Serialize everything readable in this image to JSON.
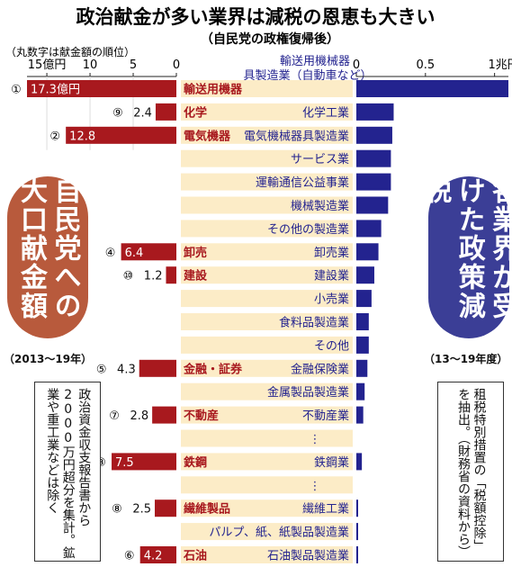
{
  "chart_data": {
    "type": "bar",
    "title": "政治献金が多い業界は減税の恩恵も大きい",
    "subtitle": "（自民党の政権復帰後）",
    "left_caption": "（丸数字は献金額の順位）",
    "left_axis": {
      "ticks": [
        "15億円",
        "10",
        "5",
        "0"
      ],
      "tick_values": [
        15,
        10,
        5,
        0
      ],
      "xlim": [
        0,
        17.3
      ]
    },
    "right_axis": {
      "ticks": [
        "0",
        "0.5",
        "1兆円"
      ],
      "tick_values": [
        0,
        0.5,
        1
      ],
      "xlim": [
        0,
        1.1
      ]
    },
    "right_header": "輸送用機械器具製造業（自動車など）",
    "colors": {
      "donation": "#a8191e",
      "tax": "#23238f",
      "band": "#fcecc7",
      "donation_label": "#a8191e",
      "tax_label": "#23238f"
    },
    "rows": [
      {
        "tax_label": "",
        "tax": 1.1,
        "donation_rank": "①",
        "donation": 17.3,
        "donation_text": "17.3億円",
        "donation_label_inside": true,
        "donation_industry": "輸送用機器"
      },
      {
        "tax_label": "化学工業",
        "tax": 0.27,
        "donation_rank": "⑨",
        "donation": 2.4,
        "donation_text": "2.4",
        "donation_label_inside": false,
        "donation_industry": "化学"
      },
      {
        "tax_label": "電気機械器具製造業",
        "tax": 0.26,
        "donation_rank": "②",
        "donation": 12.8,
        "donation_text": "12.8",
        "donation_label_inside": true,
        "donation_industry": "電気機器"
      },
      {
        "tax_label": "サービス業",
        "tax": 0.25,
        "donation_rank": "",
        "donation": null,
        "donation_text": "",
        "donation_label_inside": false,
        "donation_industry": ""
      },
      {
        "tax_label": "運輸通信公益事業",
        "tax": 0.25,
        "donation_rank": "",
        "donation": null,
        "donation_text": "",
        "donation_label_inside": false,
        "donation_industry": ""
      },
      {
        "tax_label": "機械製造業",
        "tax": 0.23,
        "donation_rank": "",
        "donation": null,
        "donation_text": "",
        "donation_label_inside": false,
        "donation_industry": ""
      },
      {
        "tax_label": "その他の製造業",
        "tax": 0.18,
        "donation_rank": "",
        "donation": null,
        "donation_text": "",
        "donation_label_inside": false,
        "donation_industry": ""
      },
      {
        "tax_label": "卸売業",
        "tax": 0.16,
        "donation_rank": "④",
        "donation": 6.4,
        "donation_text": "6.4",
        "donation_label_inside": true,
        "donation_industry": "卸売"
      },
      {
        "tax_label": "建設業",
        "tax": 0.13,
        "donation_rank": "⑩",
        "donation": 1.2,
        "donation_text": "1.2",
        "donation_label_inside": false,
        "donation_industry": "建設"
      },
      {
        "tax_label": "小売業",
        "tax": 0.11,
        "donation_rank": "",
        "donation": null,
        "donation_text": "",
        "donation_label_inside": false,
        "donation_industry": ""
      },
      {
        "tax_label": "食料品製造業",
        "tax": 0.09,
        "donation_rank": "",
        "donation": null,
        "donation_text": "",
        "donation_label_inside": false,
        "donation_industry": ""
      },
      {
        "tax_label": "その他",
        "tax": 0.09,
        "donation_rank": "",
        "donation": null,
        "donation_text": "",
        "donation_label_inside": false,
        "donation_industry": ""
      },
      {
        "tax_label": "金融保険業",
        "tax": 0.08,
        "donation_rank": "⑤",
        "donation": 4.3,
        "donation_text": "4.3",
        "donation_label_inside": false,
        "donation_industry": "金融・証券"
      },
      {
        "tax_label": "金属製品製造業",
        "tax": 0.06,
        "donation_rank": "",
        "donation": null,
        "donation_text": "",
        "donation_label_inside": false,
        "donation_industry": ""
      },
      {
        "tax_label": "不動産業",
        "tax": 0.05,
        "donation_rank": "⑦",
        "donation": 2.8,
        "donation_text": "2.8",
        "donation_label_inside": false,
        "donation_industry": "不動産"
      },
      {
        "tax_label": "⋮",
        "tax": null,
        "donation_rank": "",
        "donation": null,
        "donation_text": "",
        "donation_label_inside": false,
        "donation_industry": ""
      },
      {
        "tax_label": "鉄鋼業",
        "tax": 0.04,
        "donation_rank": "③",
        "donation": 7.5,
        "donation_text": "7.5",
        "donation_label_inside": true,
        "donation_industry": "鉄鋼"
      },
      {
        "tax_label": "⋮",
        "tax": null,
        "donation_rank": "",
        "donation": null,
        "donation_text": "",
        "donation_label_inside": false,
        "donation_industry": ""
      },
      {
        "tax_label": "繊維工業",
        "tax": 0.01,
        "donation_rank": "⑧",
        "donation": 2.5,
        "donation_text": "2.5",
        "donation_label_inside": false,
        "donation_industry": "繊維製品"
      },
      {
        "tax_label": "パルプ、紙、紙製品製造業",
        "tax": 0.01,
        "donation_rank": "",
        "donation": null,
        "donation_text": "",
        "donation_label_inside": false,
        "donation_industry": ""
      },
      {
        "tax_label": "石油製品製造業",
        "tax": 0.01,
        "donation_rank": "⑥",
        "donation": 4.2,
        "donation_text": "4.2",
        "donation_label_inside": true,
        "donation_industry": "石油"
      }
    ]
  },
  "left_pill": "自民党への大口献金額",
  "right_pill": "各業界が受けた政策減税",
  "left_period": "（2013～19年）",
  "right_period": "（13～19年度）",
  "left_note": "政治資金収支報告書から2000万円超分を集計。鉱業や重工業などは除く",
  "right_note": "租税特別措置の「税額控除」を抽出。（財務省の資料から）"
}
